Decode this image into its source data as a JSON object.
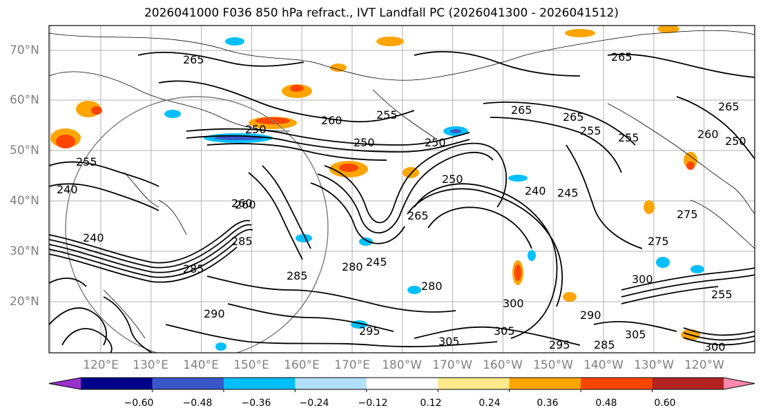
{
  "title": "2026041000 F036 850 hPa refract., IVT Landfall PC (2026041300 - 2026041512)",
  "lat_labels": [
    "70°N",
    "60°N",
    "50°N",
    "40°N",
    "30°N",
    "20°N"
  ],
  "lon_labels": [
    "120°E",
    "130°E",
    "140°E",
    "150°E",
    "160°E",
    "170°E",
    "180°W",
    "170°W",
    "160°W",
    "150°W",
    "140°W",
    "130°W",
    "120°W"
  ],
  "colorbar": {
    "colors": [
      "#9932cc",
      "#00008b",
      "#3a57c8",
      "#00bfff",
      "#b0e0fc",
      "#ffffff",
      "#ffe98a",
      "#ffa500",
      "#ff4500",
      "#b22222",
      "#ff88b0"
    ],
    "ticks": [
      "−0.60",
      "−0.48",
      "−0.36",
      "−0.24",
      "−0.12",
      "0.12",
      "0.24",
      "0.36",
      "0.48",
      "0.60"
    ]
  },
  "contour_labels": [
    "265",
    "265",
    "265",
    "265",
    "265",
    "260",
    "260",
    "260",
    "255",
    "255",
    "255",
    "255",
    "250",
    "250",
    "250",
    "250",
    "250",
    "245",
    "240",
    "240",
    "240",
    "260",
    "265",
    "275",
    "275",
    "280",
    "280",
    "285",
    "285",
    "285",
    "285",
    "290",
    "290",
    "295",
    "295",
    "300",
    "300",
    "305",
    "305",
    "305",
    "255",
    "245",
    "300"
  ]
}
